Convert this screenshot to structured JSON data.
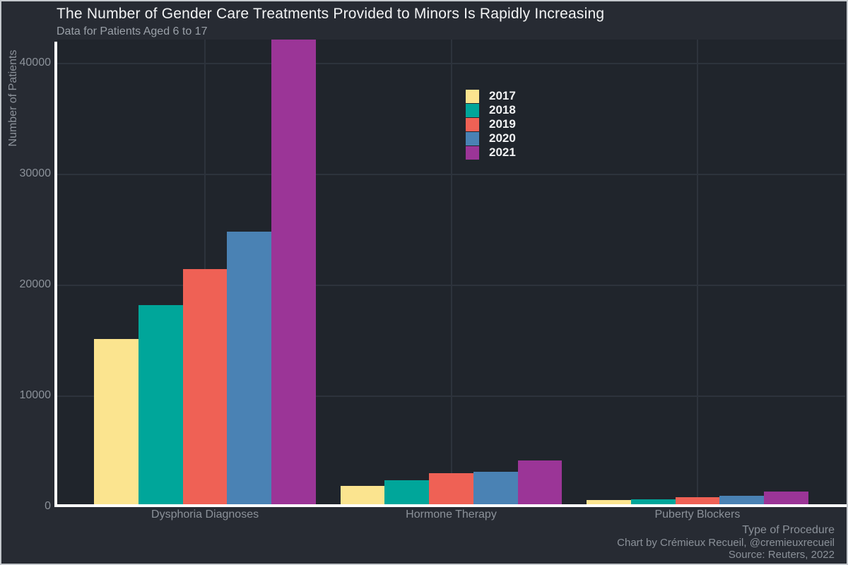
{
  "header": {
    "title": "The Number of Gender Care Treatments Provided to Minors Is Rapidly Increasing",
    "subtitle": "Data for Patients Aged 6 to 17"
  },
  "chart_data": {
    "type": "bar",
    "title": "The Number of Gender Care Treatments Provided to Minors Is Rapidly Increasing",
    "subtitle": "Data for Patients Aged 6 to 17",
    "categories": [
      "Dysphoria Diagnoses",
      "Hormone Therapy",
      "Puberty Blockers"
    ],
    "series": [
      {
        "name": "2017",
        "color": "#fbe48f",
        "values": [
          15172,
          1905,
          633
        ]
      },
      {
        "name": "2018",
        "color": "#00a69a",
        "values": [
          18231,
          2415,
          717
        ]
      },
      {
        "name": "2019",
        "color": "#ef6155",
        "values": [
          21465,
          3053,
          890
        ]
      },
      {
        "name": "2020",
        "color": "#4a82b4",
        "values": [
          24847,
          3177,
          1006
        ]
      },
      {
        "name": "2021",
        "color": "#9b3597",
        "values": [
          42167,
          4231,
          1390
        ]
      }
    ],
    "xlabel": "Type of Procedure",
    "ylabel": "Number of Patients",
    "yticks": [
      0,
      10000,
      20000,
      30000,
      40000
    ],
    "ylim": [
      0,
      42167
    ],
    "grid": true,
    "legend_position": "upper-center",
    "bar_group_width_fraction": 0.9
  },
  "theme": {
    "background": "#272b33",
    "panel_background": "#20252c",
    "gridline": "#2d333c",
    "axis_line": "#ffffff",
    "title_color": "#f2f3f4",
    "muted_text": "#8b9199",
    "subtitle_color": "#9aa0a8",
    "border": "#c4c8cc"
  },
  "footer": {
    "credit": "Chart by Crémieux Recueil, @cremieuxrecueil",
    "source": "Source: Reuters, 2022"
  }
}
